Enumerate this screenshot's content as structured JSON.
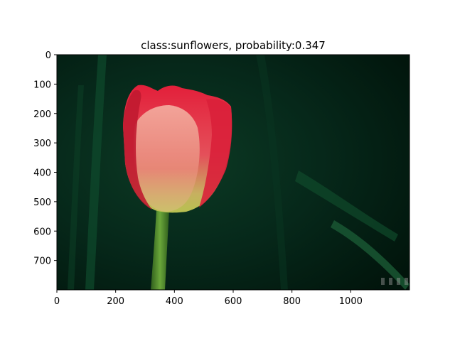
{
  "chart_data": {
    "type": "image",
    "title": "class:sunflowers, probability:0.347",
    "xlabel": "",
    "ylabel": "",
    "xlim": [
      0,
      1200
    ],
    "ylim": [
      800,
      0
    ],
    "xticks": [
      0,
      200,
      400,
      600,
      800,
      1000
    ],
    "yticks": [
      0,
      100,
      200,
      300,
      400,
      500,
      600,
      700
    ],
    "grid": false,
    "image_content": "red-yellow tulip on dark green background",
    "colors": {
      "background_dark": "#021a10",
      "leaf_green": "#0b3d25",
      "stem": "#4f8a2c",
      "petal_red": "#e0283a",
      "petal_light": "#f7aaa0",
      "petal_base_yellow": "#c9c25a"
    }
  }
}
